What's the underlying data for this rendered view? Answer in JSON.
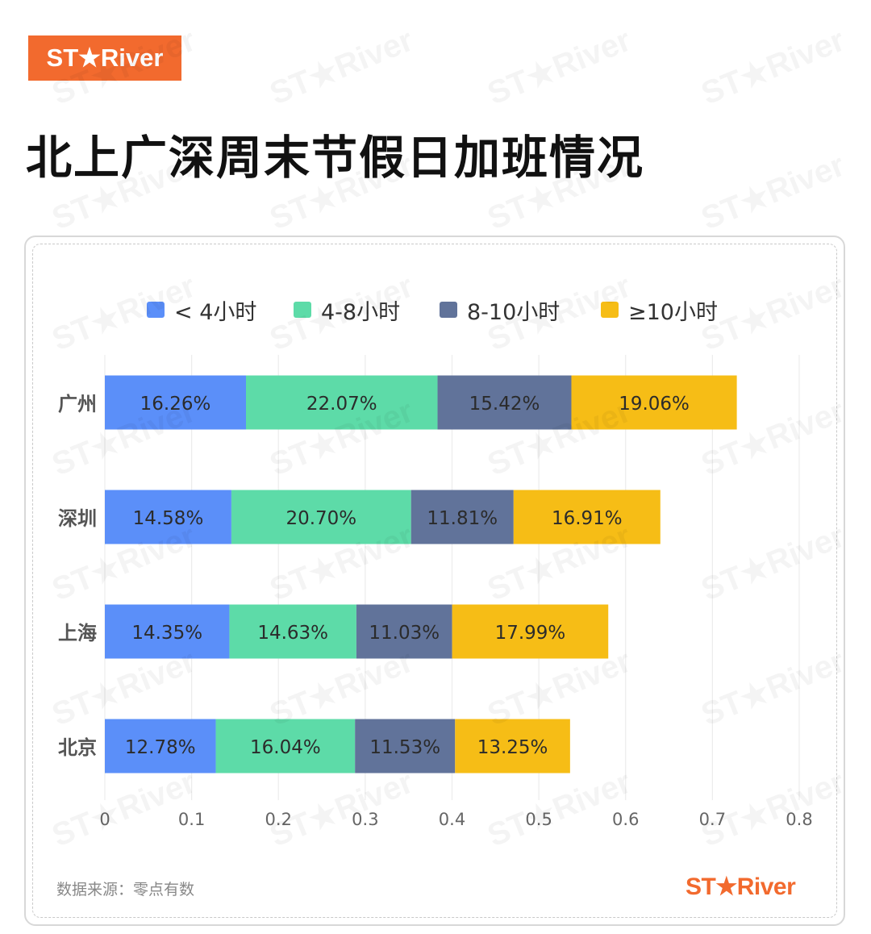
{
  "brand": {
    "logo_text": "ST★River",
    "color": "#f26a2e"
  },
  "title": "北上广深周末节假日加班情况",
  "source": "数据来源：零点有数",
  "chart_data": {
    "type": "bar",
    "orientation": "horizontal",
    "stacked": true,
    "categories": [
      "广州",
      "深圳",
      "上海",
      "北京"
    ],
    "series": [
      {
        "name": "< 4小时",
        "color": "#5b8ff9",
        "values": [
          0.1626,
          0.1458,
          0.1435,
          0.1278
        ],
        "labels": [
          "16.26%",
          "14.58%",
          "14.35%",
          "12.78%"
        ]
      },
      {
        "name": "4-8小时",
        "color": "#5ddba8",
        "values": [
          0.2207,
          0.207,
          0.1463,
          0.1604
        ],
        "labels": [
          "22.07%",
          "20.70%",
          "14.63%",
          "16.04%"
        ]
      },
      {
        "name": "8-10小时",
        "color": "#61739a",
        "values": [
          0.1542,
          0.1181,
          0.1103,
          0.1153
        ],
        "labels": [
          "15.42%",
          "11.81%",
          "11.03%",
          "11.53%"
        ]
      },
      {
        "name": "≥10小时",
        "color": "#f6bd16",
        "values": [
          0.1906,
          0.1691,
          0.1799,
          0.1325
        ],
        "labels": [
          "19.06%",
          "16.91%",
          "17.99%",
          "13.25%"
        ]
      }
    ],
    "xlim": [
      0,
      0.8
    ],
    "xticks": [
      "0",
      "0.1",
      "0.2",
      "0.3",
      "0.4",
      "0.5",
      "0.6",
      "0.7",
      "0.8"
    ],
    "grid": "vertical",
    "legend_position": "top"
  }
}
